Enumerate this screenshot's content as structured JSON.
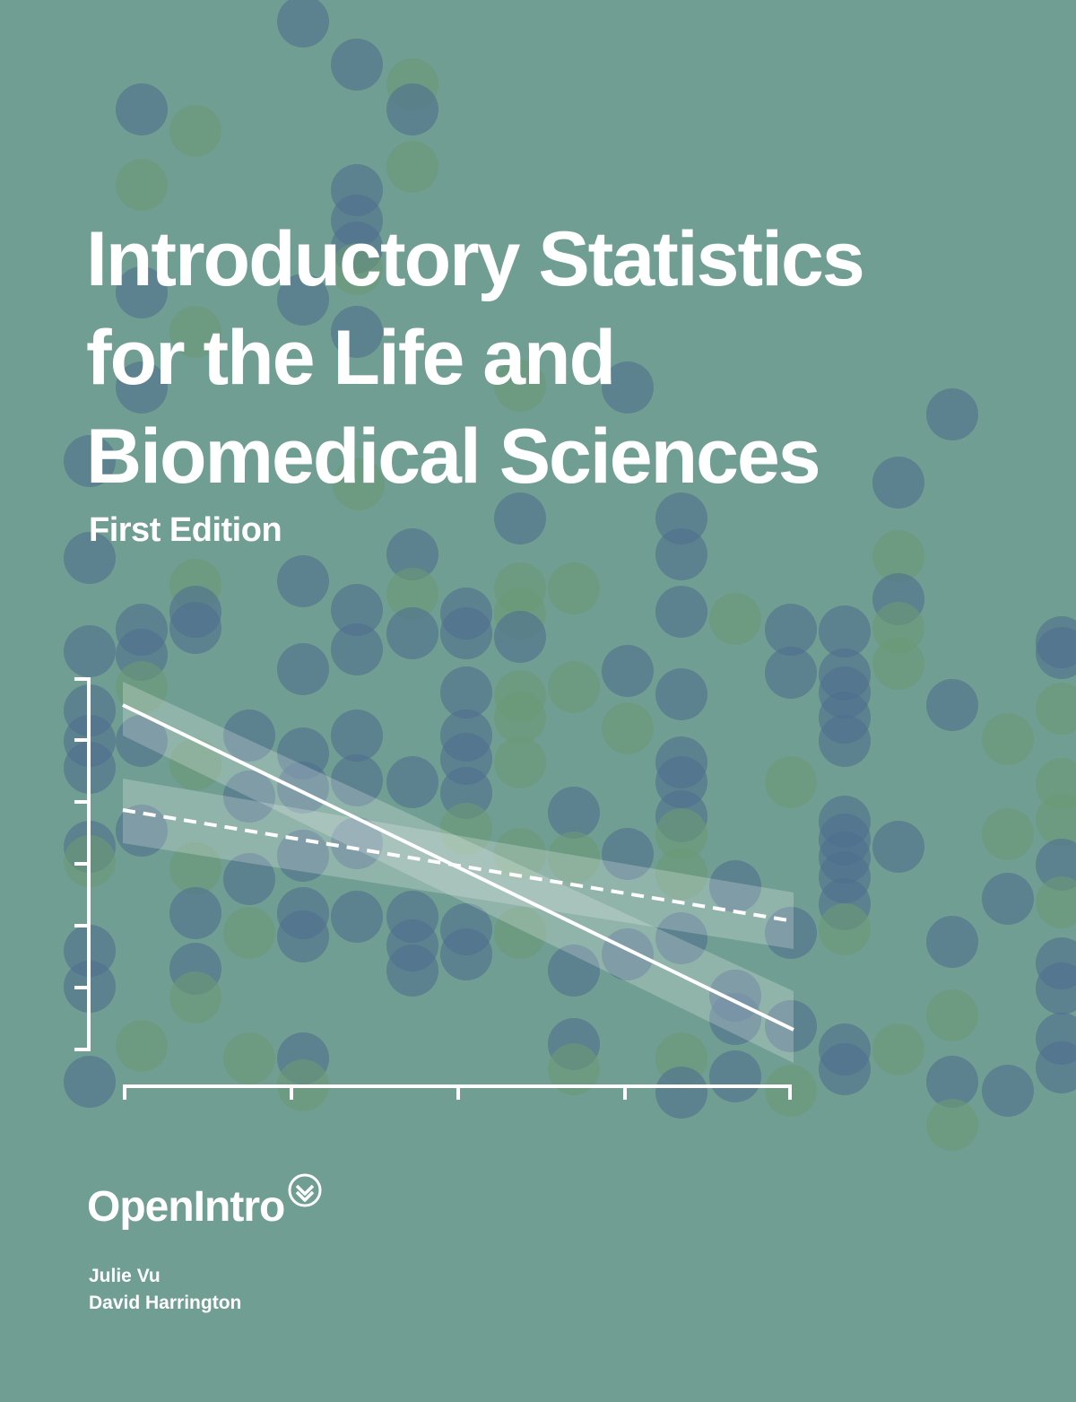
{
  "cover": {
    "title_lines": [
      "Introductory Statistics",
      "for the Life and",
      "Biomedical Sciences"
    ],
    "edition": "First Edition",
    "publisher": "OpenIntro",
    "authors": [
      "Julie Vu",
      "David Harrington"
    ]
  },
  "colors": {
    "background": "#719e92",
    "dot_blue": "#4f6f8e",
    "dot_green": "#6a9a78",
    "text": "#ffffff"
  },
  "icons": {
    "publisher_mark": "chevron-down-circle-icon"
  }
}
